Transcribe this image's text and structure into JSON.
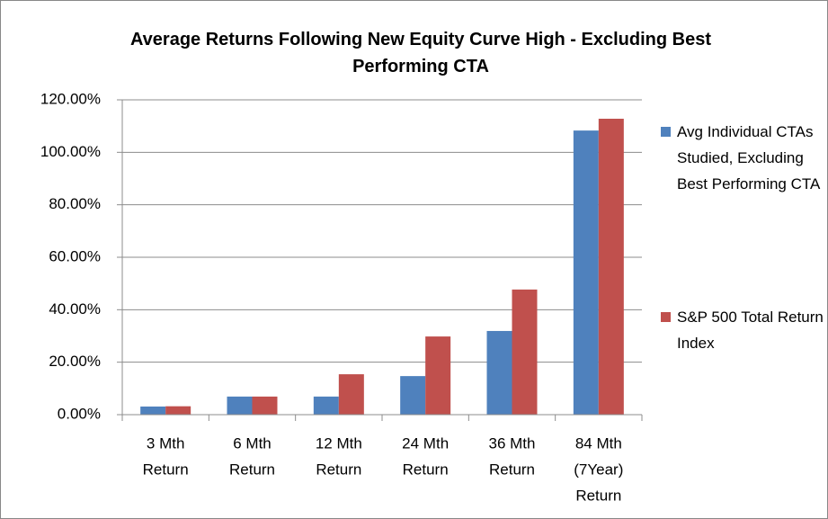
{
  "chart_data": {
    "type": "bar",
    "title": "Average Returns Following New Equity Curve High - Excluding Best Performing CTA",
    "categories": [
      [
        "3 Mth",
        "Return"
      ],
      [
        "6 Mth",
        "Return"
      ],
      [
        "12 Mth",
        "Return"
      ],
      [
        "24 Mth",
        "Return"
      ],
      [
        "36 Mth",
        "Return"
      ],
      [
        "84 Mth",
        "(7Year)",
        "Return"
      ]
    ],
    "series": [
      {
        "name": "Avg Individual CTAs Studied, Excluding Best Performing CTA",
        "color": "#4f81bd",
        "values": [
          3.1,
          6.9,
          6.9,
          14.7,
          31.9,
          108.3
        ]
      },
      {
        "name": "S&P 500 Total Return Index",
        "color": "#c0504d",
        "values": [
          3.2,
          6.9,
          15.4,
          29.8,
          47.7,
          112.8
        ]
      }
    ],
    "ylim": [
      0,
      120
    ],
    "yticks": [
      {
        "value": 0,
        "label": "0.00%"
      },
      {
        "value": 20,
        "label": "20.00%"
      },
      {
        "value": 40,
        "label": "40.00%"
      },
      {
        "value": 60,
        "label": "60.00%"
      },
      {
        "value": 80,
        "label": "80.00%"
      },
      {
        "value": 100,
        "label": "100.00%"
      },
      {
        "value": 120,
        "label": "120.00%"
      }
    ],
    "grid": true,
    "legend": "right"
  }
}
